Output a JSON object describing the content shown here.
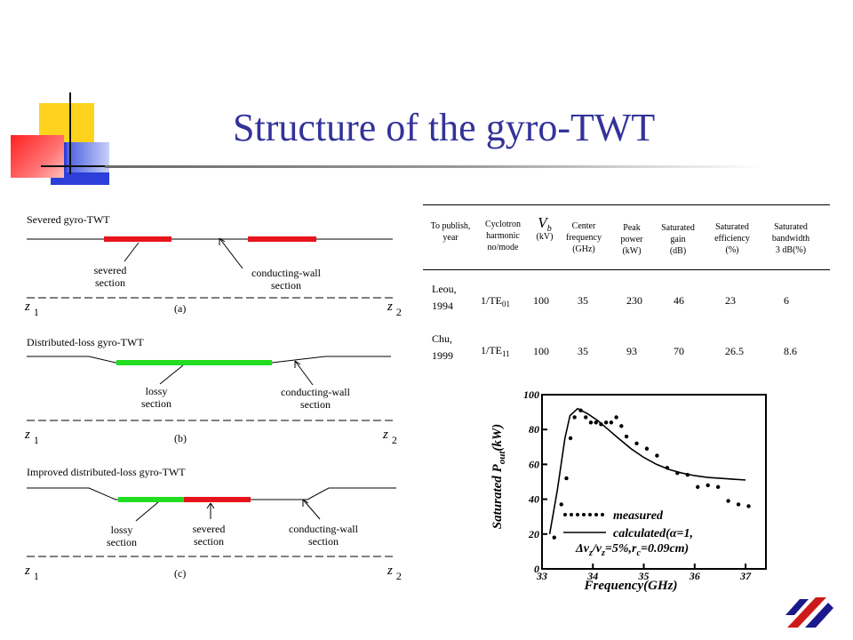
{
  "slide": {
    "title": "Structure of the gyro-TWT"
  },
  "diagrams": {
    "a": {
      "heading": "Severed gyro-TWT",
      "label_left": "severed\nsection",
      "label_right": "conducting-wall\nsection",
      "caption": "(a)",
      "z1": "z",
      "z1_sub": "1",
      "z2": "z",
      "z2_sub": "2"
    },
    "b": {
      "heading": "Distributed-loss gyro-TWT",
      "label_left": "lossy\nsection",
      "label_right": "conducting-wall\nsection",
      "caption": "(b)",
      "z1": "z",
      "z1_sub": "1",
      "z2": "z",
      "z2_sub": "2"
    },
    "c": {
      "heading": "Improved distributed-loss gyro-TWT",
      "label_left": "lossy\nsection",
      "label_mid": "severed\nsection",
      "label_right": "conducting-wall\nsection",
      "caption": "(c)",
      "z1": "z",
      "z1_sub": "1",
      "z2": "z",
      "z2_sub": "2"
    },
    "colors": {
      "severed": "#e8141c",
      "lossy": "#22dd22"
    }
  },
  "table": {
    "headers": {
      "publish": "To publish,\nyear",
      "harmonic": "Cyclotron\nharmonic\nno/mode",
      "vb": "V",
      "vb_sub": "b",
      "vb_unit": "(kV)",
      "freq": "Center\nfrequency\n(GHz)",
      "power": "Peak\npower\n(kW)",
      "gain": "Saturated\ngain\n(dB)",
      "eff": "Saturated\nefficiency\n(%)",
      "bw": "Saturated\nbandwidth\n3 dB(%)"
    },
    "rows": [
      {
        "author": "Leou,\n1994",
        "mode": "1/TE",
        "mode_sub": "01",
        "vb": "100",
        "freq": "35",
        "power": "230",
        "gain": "46",
        "eff": "23",
        "bw": "6"
      },
      {
        "author": "Chu,\n1999",
        "mode": "1/TE",
        "mode_sub": "11",
        "vb": "100",
        "freq": "35",
        "power": "93",
        "gain": "70",
        "eff": "26.5",
        "bw": "8.6"
      }
    ]
  },
  "chart_data": {
    "type": "scatter",
    "ylabel": "Saturated P",
    "ylabel_sub": "out",
    "ylabel_unit": "(kW)",
    "xlabel": "Frequency(GHz)",
    "xlim": [
      33,
      37.4
    ],
    "ylim": [
      0,
      100
    ],
    "x_ticks": [
      "33",
      "34",
      "35",
      "36",
      "37"
    ],
    "y_ticks": [
      "0",
      "20",
      "40",
      "60",
      "80",
      "100"
    ],
    "legend": {
      "measured": "measured",
      "calculated_line1": "calculated(α=1,",
      "calculated_line2": "Δv",
      "calculated_line2_sub": "z",
      "calculated_line2_mid": "/v",
      "calculated_line2_sub2": "z",
      "calculated_line2_rest": "=5%,r",
      "calculated_line2_sub3": "c",
      "calculated_line2_end": "=0.09cm)"
    },
    "series": [
      {
        "name": "measured",
        "points": [
          [
            33.24,
            18
          ],
          [
            33.38,
            37
          ],
          [
            33.48,
            52
          ],
          [
            33.56,
            75
          ],
          [
            33.64,
            87
          ],
          [
            33.76,
            91
          ],
          [
            33.86,
            87
          ],
          [
            33.96,
            84
          ],
          [
            34.06,
            84
          ],
          [
            34.16,
            83
          ],
          [
            34.26,
            84
          ],
          [
            34.36,
            84
          ],
          [
            34.46,
            87
          ],
          [
            34.56,
            82
          ],
          [
            34.66,
            76
          ],
          [
            34.86,
            72
          ],
          [
            35.06,
            69
          ],
          [
            35.26,
            65
          ],
          [
            35.46,
            58
          ],
          [
            35.66,
            55
          ],
          [
            35.86,
            54
          ],
          [
            36.06,
            47
          ],
          [
            36.26,
            48
          ],
          [
            36.46,
            47
          ],
          [
            36.66,
            39
          ],
          [
            36.86,
            37
          ],
          [
            37.06,
            36
          ]
        ]
      },
      {
        "name": "calculated",
        "points": [
          [
            33.15,
            20
          ],
          [
            33.3,
            45
          ],
          [
            33.45,
            75
          ],
          [
            33.55,
            88
          ],
          [
            33.7,
            92
          ],
          [
            33.9,
            89
          ],
          [
            34.1,
            85
          ],
          [
            34.3,
            80
          ],
          [
            34.5,
            75
          ],
          [
            34.75,
            69
          ],
          [
            35.0,
            64
          ],
          [
            35.25,
            60
          ],
          [
            35.5,
            57
          ],
          [
            35.75,
            55
          ],
          [
            36.0,
            53.5
          ],
          [
            36.25,
            52.5
          ],
          [
            36.5,
            52
          ],
          [
            36.75,
            51.5
          ],
          [
            37.0,
            51
          ]
        ]
      }
    ]
  }
}
